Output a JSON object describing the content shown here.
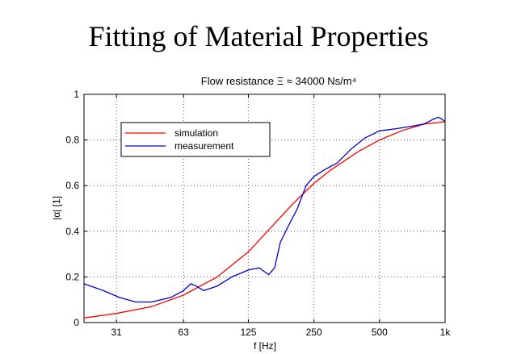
{
  "slide": {
    "title": "Fitting of Material Properties"
  },
  "chart_data": {
    "type": "line",
    "title": "Flow resistance Ξ ≈ 34000 Ns/m⁴",
    "xlabel": "f [Hz]",
    "ylabel": "|α| [1]",
    "x_scale": "log",
    "xlim": [
      22,
      1000
    ],
    "ylim": [
      0,
      1
    ],
    "x_ticks": [
      31,
      63,
      125,
      250,
      500,
      1000
    ],
    "x_tick_labels": [
      "31",
      "63",
      "125",
      "250",
      "500",
      "1k"
    ],
    "y_ticks": [
      0,
      0.2,
      0.4,
      0.6,
      0.8,
      1
    ],
    "y_tick_labels": [
      "0",
      "0.2",
      "0.4",
      "0.6",
      "0.8",
      "1"
    ],
    "grid": true,
    "legend_position": "top-left",
    "series": [
      {
        "name": "simulation",
        "color": "#ff0000",
        "points": [
          [
            22,
            0.02
          ],
          [
            31,
            0.04
          ],
          [
            45,
            0.07
          ],
          [
            63,
            0.12
          ],
          [
            90,
            0.2
          ],
          [
            125,
            0.31
          ],
          [
            160,
            0.42
          ],
          [
            200,
            0.52
          ],
          [
            250,
            0.61
          ],
          [
            300,
            0.67
          ],
          [
            400,
            0.75
          ],
          [
            500,
            0.8
          ],
          [
            630,
            0.84
          ],
          [
            800,
            0.87
          ],
          [
            1000,
            0.88
          ]
        ]
      },
      {
        "name": "measurement",
        "color": "#0000cc",
        "points": [
          [
            22,
            0.17
          ],
          [
            27,
            0.14
          ],
          [
            32,
            0.11
          ],
          [
            38,
            0.09
          ],
          [
            45,
            0.09
          ],
          [
            55,
            0.11
          ],
          [
            63,
            0.14
          ],
          [
            68,
            0.17
          ],
          [
            72,
            0.16
          ],
          [
            78,
            0.14
          ],
          [
            90,
            0.16
          ],
          [
            105,
            0.2
          ],
          [
            125,
            0.23
          ],
          [
            140,
            0.24
          ],
          [
            155,
            0.21
          ],
          [
            165,
            0.24
          ],
          [
            175,
            0.35
          ],
          [
            190,
            0.42
          ],
          [
            210,
            0.5
          ],
          [
            230,
            0.6
          ],
          [
            250,
            0.64
          ],
          [
            280,
            0.67
          ],
          [
            320,
            0.7
          ],
          [
            370,
            0.76
          ],
          [
            430,
            0.81
          ],
          [
            500,
            0.84
          ],
          [
            600,
            0.85
          ],
          [
            700,
            0.86
          ],
          [
            800,
            0.87
          ],
          [
            880,
            0.89
          ],
          [
            930,
            0.9
          ],
          [
            970,
            0.89
          ],
          [
            1000,
            0.88
          ]
        ]
      }
    ]
  }
}
